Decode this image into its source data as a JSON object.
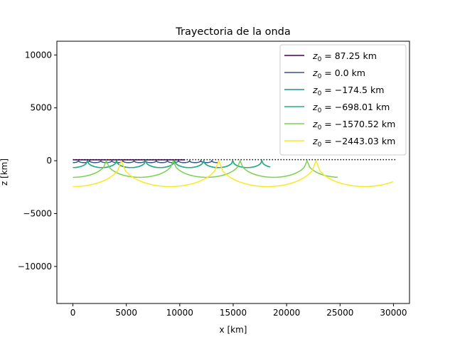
{
  "chart_data": {
    "type": "line",
    "title": "Trayectoria de la onda",
    "xlabel": "x [km]",
    "ylabel": "z [km]",
    "xlim": [
      -1500,
      31500
    ],
    "ylim": [
      -13500,
      11300
    ],
    "xticks": [
      0,
      5000,
      10000,
      15000,
      20000,
      25000,
      30000
    ],
    "yticks": [
      -10000,
      -5000,
      0,
      5000,
      10000
    ],
    "xtick_labels": [
      "0",
      "5000",
      "10000",
      "15000",
      "20000",
      "25000",
      "30000"
    ],
    "ytick_labels": [
      "−10000",
      "−5000",
      "0",
      "5000",
      "10000"
    ],
    "grid": false,
    "legend_position": "top-right",
    "reference_line": {
      "y": 100,
      "x_range": [
        0,
        30200
      ],
      "style": "dotted",
      "color": "#000000"
    },
    "series": [
      {
        "label": "= 87.25 km",
        "z0": 87.25,
        "color": "#440154",
        "depth": 0,
        "half_width": 0,
        "x_end": 10500
      },
      {
        "label": "= 0.0 km",
        "z0": 0.0,
        "color": "#3b528b",
        "depth": -180,
        "half_width": 520,
        "x_end": 13600
      },
      {
        "label": "= -174.5 km",
        "z0": -174.5,
        "color": "#21908d",
        "depth": -650,
        "half_width": 1360,
        "x_end": 18500
      },
      {
        "label": "= -698.01 km",
        "z0": -698.01,
        "color": "#26ad81",
        "depth": -650,
        "half_width": 1360,
        "x_end": 18500
      },
      {
        "label": "= -1570.52 km",
        "z0": -1570.52,
        "color": "#7ad151",
        "depth": -1570,
        "half_width": 3130,
        "x_end": 24900
      },
      {
        "label": "= -2443.03 km",
        "z0": -2443.03,
        "color": "#fde725",
        "depth": -2443,
        "half_width": 4550,
        "x_end": 30200
      }
    ],
    "legend_prefix": "z"
  }
}
